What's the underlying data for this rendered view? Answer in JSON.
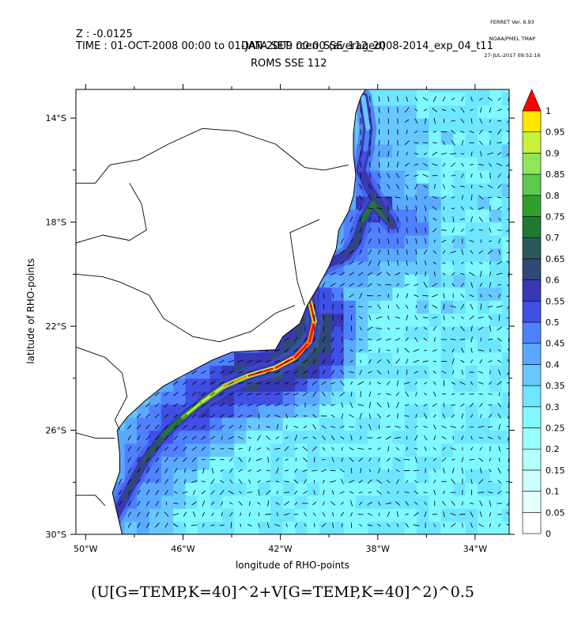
{
  "header": {
    "ferret_version": "FERRET Ver. 6.93",
    "ferret_org": "NOAA/PMEL TMAP",
    "ferret_date": "27-JUL-2017 09:52:16",
    "z_line": "Z : -0.0125",
    "time_line": "TIME : 01-OCT-2008 00:00 to 01-JAN-2009 00:00 (averaged)",
    "dataset_line": "DATA SET: rcen_SSE_112_2008-2014_exp_04_t11",
    "plot_title": "ROMS SSE 112"
  },
  "chart_data": {
    "type": "heatmap",
    "title": "ROMS SSE 112",
    "xlabel": "longitude of RHO-points",
    "ylabel": "latitude of RHO-points",
    "x_ticks": [
      "50°W",
      "46°W",
      "42°W",
      "38°W",
      "34°W"
    ],
    "x_tick_values": [
      -50,
      -46,
      -42,
      -38,
      -34
    ],
    "y_ticks": [
      "14°S",
      "18°S",
      "22°S",
      "26°S",
      "30°S"
    ],
    "y_tick_values": [
      -14,
      -18,
      -22,
      -26,
      -30
    ],
    "xlim": [
      -50.4,
      -32.6
    ],
    "ylim": [
      -30,
      -12.9
    ],
    "variable": "(U[G=TEMP,K=40]^2+V[G=TEMP,K=40]^2)^0.5",
    "colorbar": {
      "labels": [
        "0",
        "0.05",
        "0.1",
        "0.15",
        "0.2",
        "0.25",
        "0.3",
        "0.35",
        "0.4",
        "0.45",
        "0.5",
        "0.55",
        "0.6",
        "0.65",
        "0.7",
        "0.75",
        "0.8",
        "0.85",
        "0.9",
        "0.95",
        "1"
      ],
      "levels": [
        0,
        0.05,
        0.1,
        0.15,
        0.2,
        0.25,
        0.3,
        0.35,
        0.4,
        0.45,
        0.5,
        0.55,
        0.6,
        0.65,
        0.7,
        0.75,
        0.8,
        0.85,
        0.9,
        0.95,
        1
      ],
      "colors": [
        "#ffffff",
        "#e6ffff",
        "#ccffff",
        "#b3ffff",
        "#99ffff",
        "#80f8ff",
        "#6ee6ff",
        "#66c8ff",
        "#5aa8ff",
        "#4f80ff",
        "#4050e6",
        "#3838b4",
        "#304878",
        "#285a5a",
        "#1e7a32",
        "#2ea02e",
        "#5cc84c",
        "#8ee65a",
        "#c8f03c",
        "#ffe600",
        "#ff8c00",
        "#ff0000"
      ]
    },
    "current_core": [
      {
        "lon": -49.2,
        "lat": -30.0,
        "speed": 0.45
      },
      {
        "lon": -48.4,
        "lat": -28.6,
        "speed": 0.55
      },
      {
        "lon": -47.6,
        "lat": -27.2,
        "speed": 0.6
      },
      {
        "lon": -46.8,
        "lat": -26.2,
        "speed": 0.65
      },
      {
        "lon": -46.0,
        "lat": -25.5,
        "speed": 0.7
      },
      {
        "lon": -45.2,
        "lat": -24.9,
        "speed": 0.75
      },
      {
        "lon": -44.3,
        "lat": -24.3,
        "speed": 0.8
      },
      {
        "lon": -43.3,
        "lat": -23.9,
        "speed": 0.85
      },
      {
        "lon": -42.2,
        "lat": -23.6,
        "speed": 0.9
      },
      {
        "lon": -41.4,
        "lat": -23.2,
        "speed": 0.95
      },
      {
        "lon": -40.8,
        "lat": -22.6,
        "speed": 1.0
      },
      {
        "lon": -40.6,
        "lat": -21.8,
        "speed": 0.95
      },
      {
        "lon": -40.8,
        "lat": -21.0,
        "speed": 0.8
      },
      {
        "lon": -40.8,
        "lat": -20.2,
        "speed": 0.65
      },
      {
        "lon": -40.1,
        "lat": -19.6,
        "speed": 0.55
      },
      {
        "lon": -39.3,
        "lat": -19.3,
        "speed": 0.5
      },
      {
        "lon": -38.9,
        "lat": -18.8,
        "speed": 0.6
      },
      {
        "lon": -38.6,
        "lat": -17.9,
        "speed": 0.55
      },
      {
        "lon": -38.2,
        "lat": -17.3,
        "speed": 0.8
      },
      {
        "lon": -37.4,
        "lat": -18.1,
        "speed": 0.6
      },
      {
        "lon": -38.3,
        "lat": -16.8,
        "speed": 0.55
      },
      {
        "lon": -38.7,
        "lat": -16.0,
        "speed": 0.5
      },
      {
        "lon": -38.5,
        "lat": -15.2,
        "speed": 0.45
      },
      {
        "lon": -38.4,
        "lat": -14.4,
        "speed": 0.4
      },
      {
        "lon": -38.6,
        "lat": -13.2,
        "speed": 0.3
      }
    ]
  }
}
